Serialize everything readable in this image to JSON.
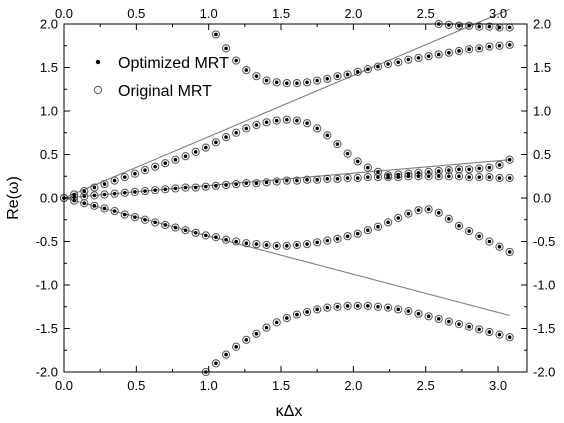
{
  "chart_data": {
    "type": "scatter",
    "title": "",
    "xlabel": "κΔx",
    "ylabel": "Re(ω)",
    "xlim": [
      0.0,
      3.2
    ],
    "ylim": [
      -2.0,
      2.0
    ],
    "xticks": [
      "0.0",
      "0.5",
      "1.0",
      "1.5",
      "2.0",
      "2.5",
      "3.0"
    ],
    "yticks": [
      "-2.0",
      "-1.5",
      "-1.0",
      "-0.5",
      "0.0",
      "0.5",
      "1.0",
      "1.5",
      "2.0"
    ],
    "grid": false,
    "legend_position": "top-left",
    "series": [
      {
        "name": "Optimized MRT",
        "marker": "filled-dot",
        "branches": [
          {
            "x": [
              0.0,
              0.07,
              0.14,
              0.21,
              0.28,
              0.35,
              0.42,
              0.49,
              0.56,
              0.63,
              0.7,
              0.77,
              0.84,
              0.91,
              0.98,
              1.05,
              1.12,
              1.19,
              1.26,
              1.33,
              1.4,
              1.47,
              1.54,
              1.61,
              1.68,
              1.75,
              1.82,
              1.89,
              1.96,
              2.03,
              2.1,
              2.17,
              2.24,
              2.31,
              2.38,
              2.45,
              2.52,
              2.59,
              2.66,
              2.73,
              2.8,
              2.87,
              2.94,
              3.01,
              3.08
            ],
            "y": [
              0.0,
              0.01,
              0.02,
              0.03,
              0.04,
              0.05,
              0.06,
              0.07,
              0.08,
              0.09,
              0.1,
              0.11,
              0.12,
              0.12,
              0.13,
              0.14,
              0.15,
              0.16,
              0.17,
              0.17,
              0.18,
              0.19,
              0.2,
              0.2,
              0.21,
              0.21,
              0.22,
              0.22,
              0.23,
              0.23,
              0.24,
              0.24,
              0.24,
              0.24,
              0.25,
              0.25,
              0.25,
              0.25,
              0.25,
              0.25,
              0.24,
              0.24,
              0.24,
              0.23,
              0.23
            ]
          },
          {
            "x": [
              0.0,
              0.07,
              0.14,
              0.21,
              0.28,
              0.35,
              0.42,
              0.49,
              0.56,
              0.63,
              0.7,
              0.77,
              0.84,
              0.91,
              0.98,
              1.05,
              1.12,
              1.19,
              1.26,
              1.33,
              1.4,
              1.47,
              1.54,
              1.61,
              1.68,
              1.75,
              1.82,
              1.89,
              1.96,
              2.03,
              2.1,
              2.17
            ],
            "y": [
              0.0,
              0.04,
              0.08,
              0.12,
              0.16,
              0.2,
              0.24,
              0.28,
              0.32,
              0.36,
              0.4,
              0.44,
              0.48,
              0.53,
              0.58,
              0.64,
              0.7,
              0.75,
              0.8,
              0.84,
              0.87,
              0.89,
              0.9,
              0.89,
              0.86,
              0.8,
              0.72,
              0.62,
              0.51,
              0.42,
              0.35,
              0.3
            ]
          },
          {
            "x": [
              2.24,
              2.31,
              2.38,
              2.45,
              2.52,
              2.59,
              2.66,
              2.73,
              2.8,
              2.87,
              2.94,
              3.01,
              3.08
            ],
            "y": [
              0.26,
              0.27,
              0.28,
              0.29,
              0.3,
              0.31,
              0.32,
              0.33,
              0.33,
              0.34,
              0.35,
              0.38,
              0.44
            ]
          },
          {
            "x": [
              0.0,
              0.07,
              0.14,
              0.21,
              0.28,
              0.35,
              0.42,
              0.49,
              0.56,
              0.63,
              0.7,
              0.77,
              0.84,
              0.91,
              0.98,
              1.05,
              1.12,
              1.19,
              1.26,
              1.33,
              1.4,
              1.47,
              1.54,
              1.61,
              1.68,
              1.75,
              1.82,
              1.89,
              1.96,
              2.03,
              2.1,
              2.17,
              2.24,
              2.31,
              2.38,
              2.45,
              2.52,
              2.59,
              2.66,
              2.73,
              2.8,
              2.87,
              2.94,
              3.01,
              3.08
            ],
            "y": [
              0.0,
              -0.03,
              -0.06,
              -0.09,
              -0.12,
              -0.15,
              -0.19,
              -0.22,
              -0.25,
              -0.28,
              -0.31,
              -0.34,
              -0.37,
              -0.4,
              -0.43,
              -0.45,
              -0.48,
              -0.5,
              -0.52,
              -0.53,
              -0.54,
              -0.55,
              -0.55,
              -0.54,
              -0.53,
              -0.51,
              -0.49,
              -0.47,
              -0.44,
              -0.41,
              -0.37,
              -0.33,
              -0.28,
              -0.23,
              -0.18,
              -0.14,
              -0.13,
              -0.17,
              -0.24,
              -0.32,
              -0.38,
              -0.44,
              -0.5,
              -0.56,
              -0.62
            ]
          },
          {
            "x": [
              1.05,
              1.12,
              1.19,
              1.26,
              1.33,
              1.4,
              1.47,
              1.54,
              1.61,
              1.68,
              1.75,
              1.82,
              1.89,
              1.96,
              2.03,
              2.1,
              2.17,
              2.24,
              2.31,
              2.38,
              2.45,
              2.52,
              2.59,
              2.66,
              2.73,
              2.8,
              2.87,
              2.94,
              3.01,
              3.08
            ],
            "y": [
              1.88,
              1.72,
              1.58,
              1.47,
              1.4,
              1.35,
              1.33,
              1.32,
              1.32,
              1.33,
              1.35,
              1.37,
              1.4,
              1.42,
              1.45,
              1.48,
              1.51,
              1.54,
              1.56,
              1.59,
              1.61,
              1.63,
              1.65,
              1.67,
              1.69,
              1.71,
              1.72,
              1.74,
              1.75,
              1.76
            ]
          },
          {
            "x": [
              0.98,
              1.05,
              1.12,
              1.19,
              1.26,
              1.33,
              1.4,
              1.47,
              1.54,
              1.61,
              1.68,
              1.75,
              1.82,
              1.89,
              1.96,
              2.03,
              2.1,
              2.17,
              2.24,
              2.31,
              2.38,
              2.45,
              2.52,
              2.59,
              2.66,
              2.73,
              2.8,
              2.87,
              2.94,
              3.01,
              3.08
            ],
            "y": [
              -2.0,
              -1.9,
              -1.8,
              -1.71,
              -1.63,
              -1.56,
              -1.49,
              -1.43,
              -1.38,
              -1.34,
              -1.31,
              -1.28,
              -1.26,
              -1.25,
              -1.24,
              -1.24,
              -1.24,
              -1.25,
              -1.26,
              -1.28,
              -1.3,
              -1.33,
              -1.36,
              -1.39,
              -1.42,
              -1.45,
              -1.48,
              -1.51,
              -1.54,
              -1.57,
              -1.6
            ]
          },
          {
            "x": [
              2.59,
              2.66,
              2.73,
              2.8,
              2.87,
              2.94,
              3.01,
              3.08
            ],
            "y": [
              2.0,
              1.99,
              1.98,
              1.98,
              1.97,
              1.97,
              1.96,
              1.96
            ]
          }
        ]
      },
      {
        "name": "Original MRT",
        "marker": "open-circle",
        "branches": "same points as Optimized MRT"
      }
    ],
    "reference_lines": [
      {
        "x": [
          0.0,
          3.08
        ],
        "y": [
          0.0,
          2.17
        ]
      },
      {
        "x": [
          0.0,
          3.08
        ],
        "y": [
          0.0,
          0.44
        ]
      },
      {
        "x": [
          0.0,
          3.08
        ],
        "y": [
          0.0,
          -1.35
        ]
      }
    ],
    "colors": {
      "reference_line": "#7f7f7f",
      "marker": "#000000",
      "open_marker": "#555555"
    }
  }
}
